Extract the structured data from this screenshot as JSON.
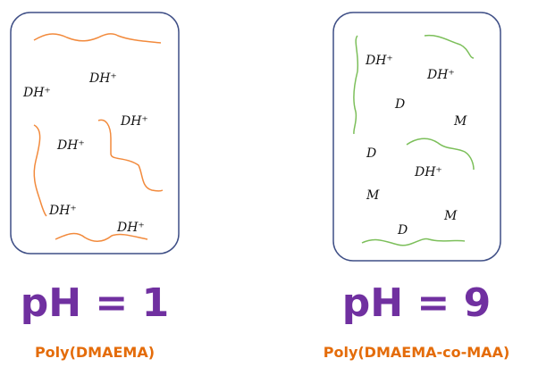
{
  "panels": [
    {
      "labels": [
        "DH⁺",
        "DH⁺",
        "DH⁺",
        "DH⁺",
        "DH⁺",
        "DH⁺"
      ],
      "ph": "pH = 1",
      "polymer": "Poly(DMAEMA)"
    },
    {
      "labels": [
        "DH⁺",
        "DH⁺",
        "D",
        "M",
        "D",
        "DH⁺",
        "M",
        "M",
        "D"
      ],
      "ph": "pH = 9",
      "polymer": "Poly(DMAEMA-co-MAA)"
    }
  ]
}
